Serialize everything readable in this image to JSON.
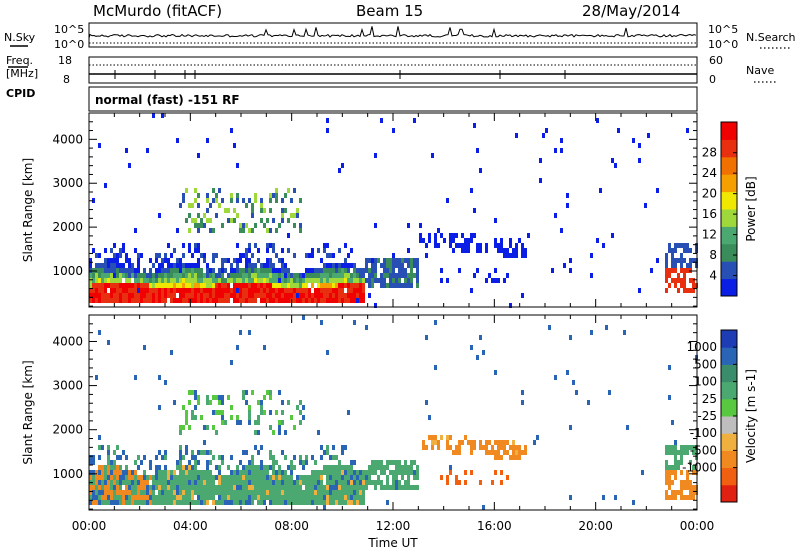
{
  "header": {
    "station": "McMurdo (fitACF)",
    "beam": "Beam 15",
    "date": "28/May/2014"
  },
  "strip_panels": {
    "left_labels": [
      "N.Sky",
      "Freq.",
      "[MHz]",
      "CPID"
    ],
    "right_labels": [
      "N.Search",
      "Nave"
    ],
    "nsky_ticks": [
      "10^5",
      "10^0"
    ],
    "nsearch_ticks": [
      "10^5",
      "10^0"
    ],
    "freq_ticks": [
      "18",
      "8"
    ],
    "nave_ticks": [
      "60",
      "0"
    ],
    "cpid_text": "normal (fast) -151 RF"
  },
  "chart_data": [
    {
      "type": "heatmap",
      "title": "Power",
      "ylabel": "Slant Range [km]",
      "xlabel": "Time UT",
      "x_tick_labels": [
        "00:00",
        "04:00",
        "08:00",
        "12:00",
        "16:00",
        "20:00",
        "00:00"
      ],
      "x_hours": [
        0,
        4,
        8,
        12,
        16,
        20,
        24
      ],
      "xlim_hours": [
        0,
        24
      ],
      "y_ticks": [
        1000,
        2000,
        3000,
        4000
      ],
      "ylim_km": [
        180,
        4600
      ],
      "colorbar": {
        "label": "Power [dB]",
        "tick_labels": [
          "4",
          "8",
          "12",
          "16",
          "20",
          "24",
          "28"
        ],
        "colors": [
          "#0a1ee6",
          "#2850b4",
          "#3a8c5a",
          "#4aa870",
          "#9fd83a",
          "#f0e800",
          "#f5a000",
          "#f07000",
          "#e83010",
          "#f00000"
        ]
      }
    },
    {
      "type": "heatmap",
      "title": "Velocity",
      "ylabel": "Slant Range [km]",
      "xlabel": "Time UT",
      "x_tick_labels": [
        "00:00",
        "04:00",
        "08:00",
        "12:00",
        "16:00",
        "20:00",
        "00:00"
      ],
      "x_hours": [
        0,
        4,
        8,
        12,
        16,
        20,
        24
      ],
      "xlim_hours": [
        0,
        24
      ],
      "y_ticks": [
        1000,
        2000,
        3000,
        4000
      ],
      "ylim_km": [
        180,
        4600
      ],
      "colorbar": {
        "label": "Velocity [m s-1]",
        "tick_labels": [
          "1000",
          "500",
          "100",
          "25",
          "-25",
          "-100",
          "-500",
          "-1000"
        ],
        "colors": [
          "#1e3cb4",
          "#2a64b4",
          "#3a8c6a",
          "#4aa870",
          "#58c840",
          "#bebebe",
          "#f0b040",
          "#f08a20",
          "#f06010",
          "#e02010"
        ]
      }
    }
  ]
}
